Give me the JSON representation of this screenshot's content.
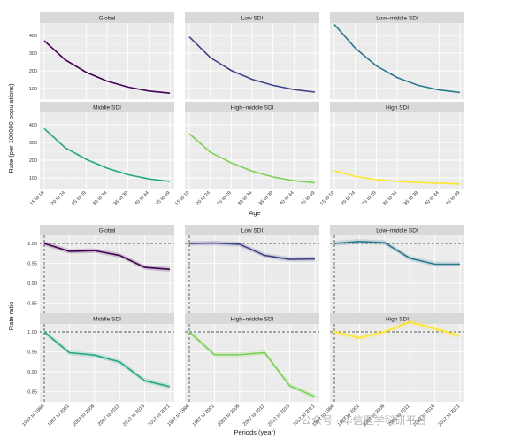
{
  "watermark": "公众号 · 华信医学科研平台",
  "chart_data": [
    {
      "type": "line",
      "facet_titles": [
        "Global",
        "Low SDI",
        "Low−middle SDI",
        "Middle SDI",
        "High−middle SDI",
        "High SDI"
      ],
      "xlabel": "Age",
      "ylabel": "Rate (per 100000 populations)",
      "categories": [
        "15 to 19",
        "20 to 24",
        "25 to 29",
        "30 to 34",
        "35 to 39",
        "40 to 44",
        "45 to 49"
      ],
      "yticks": [
        100,
        200,
        300,
        400
      ],
      "ylim": [
        40,
        470
      ],
      "series": [
        {
          "name": "Global",
          "color": "#440154",
          "values": [
            370,
            262,
            192,
            142,
            108,
            86,
            74
          ]
        },
        {
          "name": "Low SDI",
          "color": "#414487",
          "values": [
            392,
            275,
            202,
            152,
            118,
            94,
            80
          ]
        },
        {
          "name": "Low−middle SDI",
          "color": "#2a788e",
          "values": [
            462,
            328,
            228,
            162,
            118,
            92,
            78
          ]
        },
        {
          "name": "Middle SDI",
          "color": "#22a884",
          "values": [
            378,
            270,
            205,
            155,
            118,
            94,
            80
          ]
        },
        {
          "name": "High−middle SDI",
          "color": "#7ad151",
          "values": [
            350,
            245,
            185,
            138,
            105,
            84,
            72
          ]
        },
        {
          "name": "High SDI",
          "color": "#fde725",
          "values": [
            140,
            108,
            90,
            80,
            74,
            70,
            66
          ]
        }
      ],
      "grid": true
    },
    {
      "type": "line",
      "facet_titles": [
        "Global",
        "Low SDI",
        "Low−middle SDI",
        "Middle SDI",
        "High−middle SDI",
        "High SDI"
      ],
      "xlabel": "Periods (year)",
      "ylabel": "Rate ratio",
      "categories": [
        "1992 to 1996",
        "1997 to 2001",
        "2002 to 2006",
        "2007 to 2011",
        "2012 to 2016",
        "2017 to 2021"
      ],
      "yticks": [
        0.85,
        0.9,
        0.95,
        1.0
      ],
      "ylim": [
        0.825,
        1.02
      ],
      "reference_line": 1.0,
      "series": [
        {
          "name": "Global",
          "color": "#440154",
          "values": [
            1.0,
            0.98,
            0.982,
            0.97,
            0.94,
            0.935
          ]
        },
        {
          "name": "Low SDI",
          "color": "#414487",
          "values": [
            1.0,
            1.001,
            0.998,
            0.97,
            0.96,
            0.961
          ]
        },
        {
          "name": "Low−middle SDI",
          "color": "#2a788e",
          "values": [
            1.0,
            1.005,
            1.002,
            0.963,
            0.948,
            0.948
          ]
        },
        {
          "name": "Middle SDI",
          "color": "#22a884",
          "values": [
            1.0,
            0.948,
            0.942,
            0.925,
            0.878,
            0.863
          ]
        },
        {
          "name": "High−middle SDI",
          "color": "#7ad151",
          "values": [
            1.0,
            0.943,
            0.943,
            0.948,
            0.865,
            0.838
          ]
        },
        {
          "name": "High SDI",
          "color": "#fde725",
          "values": [
            1.0,
            0.985,
            1.0,
            1.025,
            1.008,
            0.99
          ]
        }
      ],
      "grid": true
    }
  ]
}
